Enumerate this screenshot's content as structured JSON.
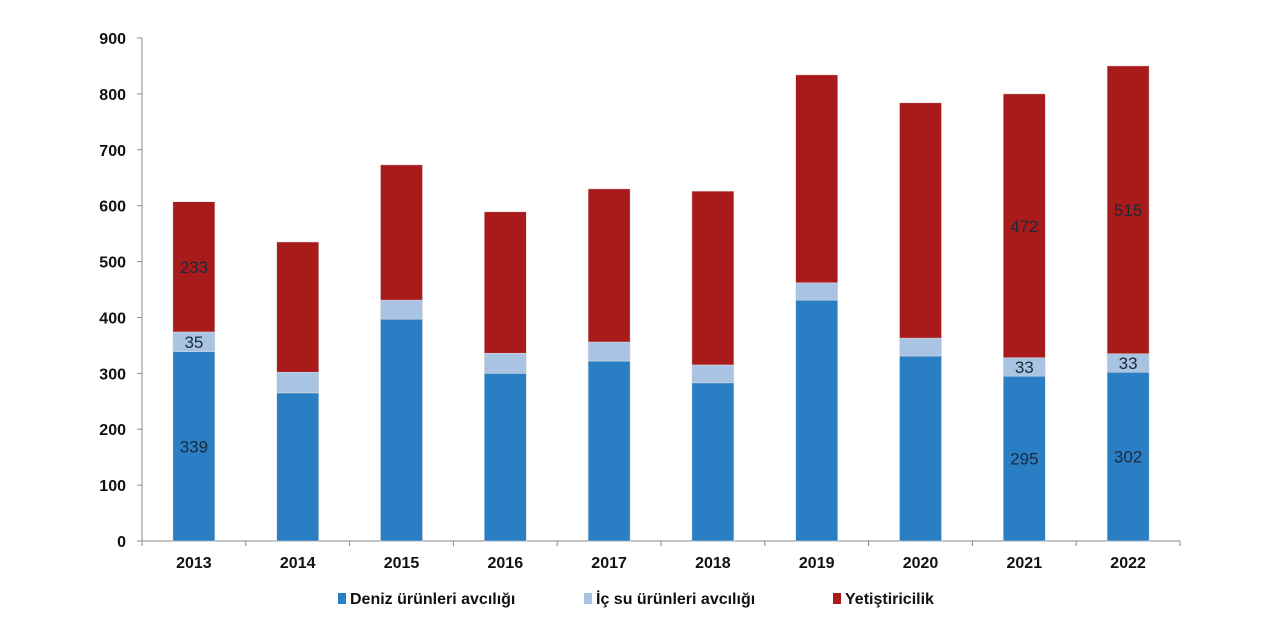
{
  "chart_data": {
    "type": "bar",
    "stacked": true,
    "title": "",
    "xlabel": "",
    "ylabel": "",
    "ylim": [
      0,
      900
    ],
    "yticks": [
      0,
      100,
      200,
      300,
      400,
      500,
      600,
      700,
      800,
      900
    ],
    "grid": false,
    "legend_position": "bottom",
    "categories": [
      "2013",
      "2014",
      "2015",
      "2016",
      "2017",
      "2018",
      "2019",
      "2020",
      "2021",
      "2022"
    ],
    "series": [
      {
        "name": "Deniz ürünleri avcılığı",
        "color": "#2a7fc4",
        "values": [
          339,
          265,
          397,
          300,
          322,
          283,
          431,
          331,
          295,
          302
        ],
        "labels": [
          "339",
          null,
          null,
          null,
          null,
          null,
          null,
          null,
          "295",
          "302"
        ]
      },
      {
        "name": "İç su ürünleri avcılığı",
        "color": "#a9c3e3",
        "values": [
          35,
          37,
          34,
          36,
          34,
          32,
          31,
          32,
          33,
          33
        ],
        "labels": [
          "35",
          null,
          null,
          null,
          null,
          null,
          null,
          null,
          "33",
          "33"
        ]
      },
      {
        "name": "Yetiştiricilik",
        "color": "#a91b1b",
        "values": [
          233,
          233,
          242,
          253,
          274,
          311,
          372,
          421,
          472,
          515
        ],
        "labels": [
          "233",
          null,
          null,
          null,
          null,
          null,
          null,
          null,
          "472",
          "515"
        ]
      }
    ]
  }
}
